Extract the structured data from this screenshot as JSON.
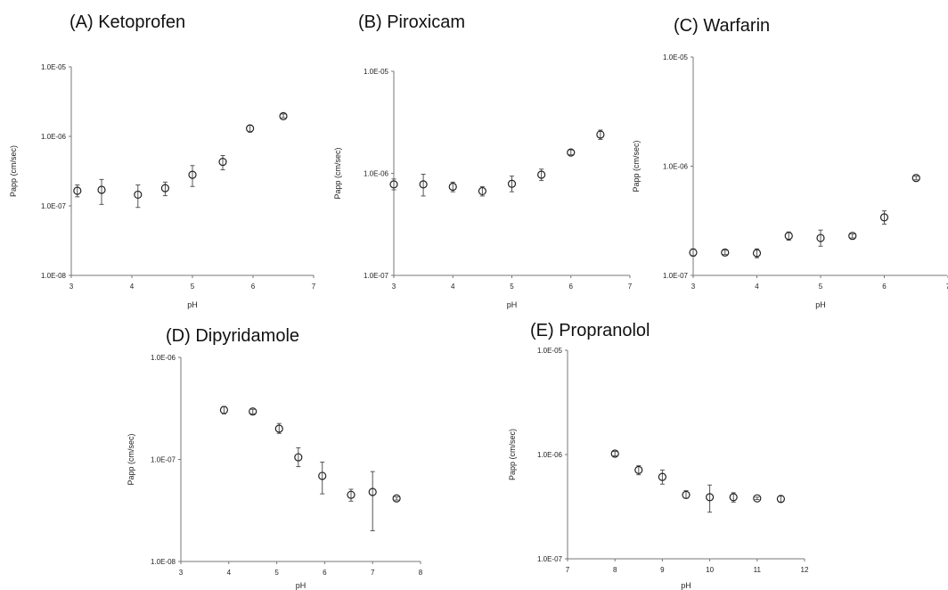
{
  "chart_data": [
    {
      "id": "A",
      "type": "scatter",
      "title": "(A) Ketoprofen",
      "xlabel": "pH",
      "ylabel": "Papp (cm/sec)",
      "xlim": [
        3,
        7
      ],
      "xticks": [
        "3",
        "4",
        "5",
        "6",
        "7"
      ],
      "ylim": [
        1e-08,
        1e-05
      ],
      "yscale": "log",
      "yticks": [
        "1.0E-08",
        "1.0E-07",
        "1.0E-06",
        "1.0E-05"
      ],
      "points": [
        {
          "x": 3.1,
          "y": 1.65e-07,
          "err_low": 1.35e-07,
          "err_high": 2e-07
        },
        {
          "x": 3.5,
          "y": 1.7e-07,
          "err_low": 1.05e-07,
          "err_high": 2.4e-07
        },
        {
          "x": 4.1,
          "y": 1.45e-07,
          "err_low": 9.5e-08,
          "err_high": 2e-07
        },
        {
          "x": 4.55,
          "y": 1.8e-07,
          "err_low": 1.4e-07,
          "err_high": 2.2e-07
        },
        {
          "x": 5.0,
          "y": 2.8e-07,
          "err_low": 1.9e-07,
          "err_high": 3.8e-07
        },
        {
          "x": 5.5,
          "y": 4.3e-07,
          "err_low": 3.3e-07,
          "err_high": 5.3e-07
        },
        {
          "x": 5.95,
          "y": 1.3e-06,
          "err_low": 1.15e-06,
          "err_high": 1.45e-06
        },
        {
          "x": 6.5,
          "y": 1.95e-06,
          "err_low": 1.85e-06,
          "err_high": 2.1e-06
        }
      ]
    },
    {
      "id": "B",
      "type": "scatter",
      "title": "(B) Piroxicam",
      "xlabel": "pH",
      "ylabel": "Papp (cm/sec)",
      "xlim": [
        3,
        7
      ],
      "xticks": [
        "3",
        "4",
        "5",
        "6",
        "7"
      ],
      "ylim": [
        1e-07,
        1e-05
      ],
      "yscale": "log",
      "yticks": [
        "1.0E-07",
        "1.0E-06",
        "1.0E-05"
      ],
      "points": [
        {
          "x": 3.0,
          "y": 7.8e-07,
          "err_low": 6.9e-07,
          "err_high": 8.8e-07
        },
        {
          "x": 3.5,
          "y": 7.8e-07,
          "err_low": 6e-07,
          "err_high": 9.8e-07
        },
        {
          "x": 4.0,
          "y": 7.4e-07,
          "err_low": 6.6e-07,
          "err_high": 8.2e-07
        },
        {
          "x": 4.5,
          "y": 6.7e-07,
          "err_low": 6e-07,
          "err_high": 7.4e-07
        },
        {
          "x": 5.0,
          "y": 7.9e-07,
          "err_low": 6.6e-07,
          "err_high": 9.4e-07
        },
        {
          "x": 5.5,
          "y": 9.7e-07,
          "err_low": 8.5e-07,
          "err_high": 1.1e-06
        },
        {
          "x": 6.0,
          "y": 1.6e-06,
          "err_low": 1.52e-06,
          "err_high": 1.7e-06
        },
        {
          "x": 6.5,
          "y": 2.4e-06,
          "err_low": 2.15e-06,
          "err_high": 2.65e-06
        }
      ]
    },
    {
      "id": "C",
      "type": "scatter",
      "title": "(C) Warfarin",
      "xlabel": "pH",
      "ylabel": "Papp (cm/sec)",
      "xlim": [
        3,
        7
      ],
      "xticks": [
        "3",
        "4",
        "5",
        "6",
        "7"
      ],
      "ylim": [
        1e-07,
        1e-05
      ],
      "yscale": "log",
      "yticks": [
        "1.0E-07",
        "1.0E-06",
        "1.0E-05"
      ],
      "points": [
        {
          "x": 3.0,
          "y": 1.62e-07,
          "err_low": 1.5e-07,
          "err_high": 1.75e-07
        },
        {
          "x": 3.5,
          "y": 1.62e-07,
          "err_low": 1.55e-07,
          "err_high": 1.7e-07
        },
        {
          "x": 4.0,
          "y": 1.6e-07,
          "err_low": 1.45e-07,
          "err_high": 1.75e-07
        },
        {
          "x": 4.5,
          "y": 2.3e-07,
          "err_low": 2.1e-07,
          "err_high": 2.5e-07
        },
        {
          "x": 5.0,
          "y": 2.2e-07,
          "err_low": 1.85e-07,
          "err_high": 2.6e-07
        },
        {
          "x": 5.5,
          "y": 2.3e-07,
          "err_low": 2.2e-07,
          "err_high": 2.4e-07
        },
        {
          "x": 6.0,
          "y": 3.4e-07,
          "err_low": 2.95e-07,
          "err_high": 3.9e-07
        },
        {
          "x": 6.5,
          "y": 7.8e-07,
          "err_low": 7.5e-07,
          "err_high": 8.1e-07
        }
      ]
    },
    {
      "id": "D",
      "type": "scatter",
      "title": "(D) Dipyridamole",
      "xlabel": "pH",
      "ylabel": "Papp (cm/sec)",
      "xlim": [
        3,
        8
      ],
      "xticks": [
        "3",
        "4",
        "5",
        "6",
        "7",
        "8"
      ],
      "ylim": [
        1e-08,
        1e-06
      ],
      "yscale": "log",
      "yticks": [
        "1.0E-08",
        "1.0E-07",
        "1.0E-06"
      ],
      "points": [
        {
          "x": 3.9,
          "y": 3.05e-07,
          "err_low": 2.8e-07,
          "err_high": 3.3e-07
        },
        {
          "x": 4.5,
          "y": 2.95e-07,
          "err_low": 2.8e-07,
          "err_high": 3.1e-07
        },
        {
          "x": 5.05,
          "y": 2e-07,
          "err_low": 1.8e-07,
          "err_high": 2.25e-07
        },
        {
          "x": 5.45,
          "y": 1.05e-07,
          "err_low": 8.5e-08,
          "err_high": 1.3e-07
        },
        {
          "x": 5.95,
          "y": 6.9e-08,
          "err_low": 4.6e-08,
          "err_high": 9.4e-08
        },
        {
          "x": 6.55,
          "y": 4.5e-08,
          "err_low": 3.9e-08,
          "err_high": 5.1e-08
        },
        {
          "x": 7.0,
          "y": 4.8e-08,
          "err_low": 2e-08,
          "err_high": 7.6e-08
        },
        {
          "x": 7.5,
          "y": 4.15e-08,
          "err_low": 4e-08,
          "err_high": 4.3e-08
        }
      ]
    },
    {
      "id": "E",
      "type": "scatter",
      "title": "(E) Propranolol",
      "xlabel": "pH",
      "ylabel": "Papp (cm/sec)",
      "xlim": [
        7,
        12
      ],
      "xticks": [
        "7",
        "8",
        "9",
        "10",
        "11",
        "12"
      ],
      "ylim": [
        1e-07,
        1e-05
      ],
      "yscale": "log",
      "yticks": [
        "1.0E-07",
        "1.0E-06",
        "1.0E-05"
      ],
      "points": [
        {
          "x": 8.0,
          "y": 1.02e-06,
          "err_low": 9.7e-07,
          "err_high": 1.07e-06
        },
        {
          "x": 8.5,
          "y": 7.1e-07,
          "err_low": 6.4e-07,
          "err_high": 7.8e-07
        },
        {
          "x": 9.0,
          "y": 6.1e-07,
          "err_low": 5.2e-07,
          "err_high": 7.1e-07
        },
        {
          "x": 9.5,
          "y": 4.1e-07,
          "err_low": 3.8e-07,
          "err_high": 4.5e-07
        },
        {
          "x": 10.0,
          "y": 3.9e-07,
          "err_low": 2.8e-07,
          "err_high": 5.1e-07
        },
        {
          "x": 10.5,
          "y": 3.9e-07,
          "err_low": 3.5e-07,
          "err_high": 4.3e-07
        },
        {
          "x": 11.0,
          "y": 3.8e-07,
          "err_low": 3.7e-07,
          "err_high": 3.9e-07
        },
        {
          "x": 11.5,
          "y": 3.75e-07,
          "err_low": 3.5e-07,
          "err_high": 4e-07
        }
      ]
    }
  ]
}
